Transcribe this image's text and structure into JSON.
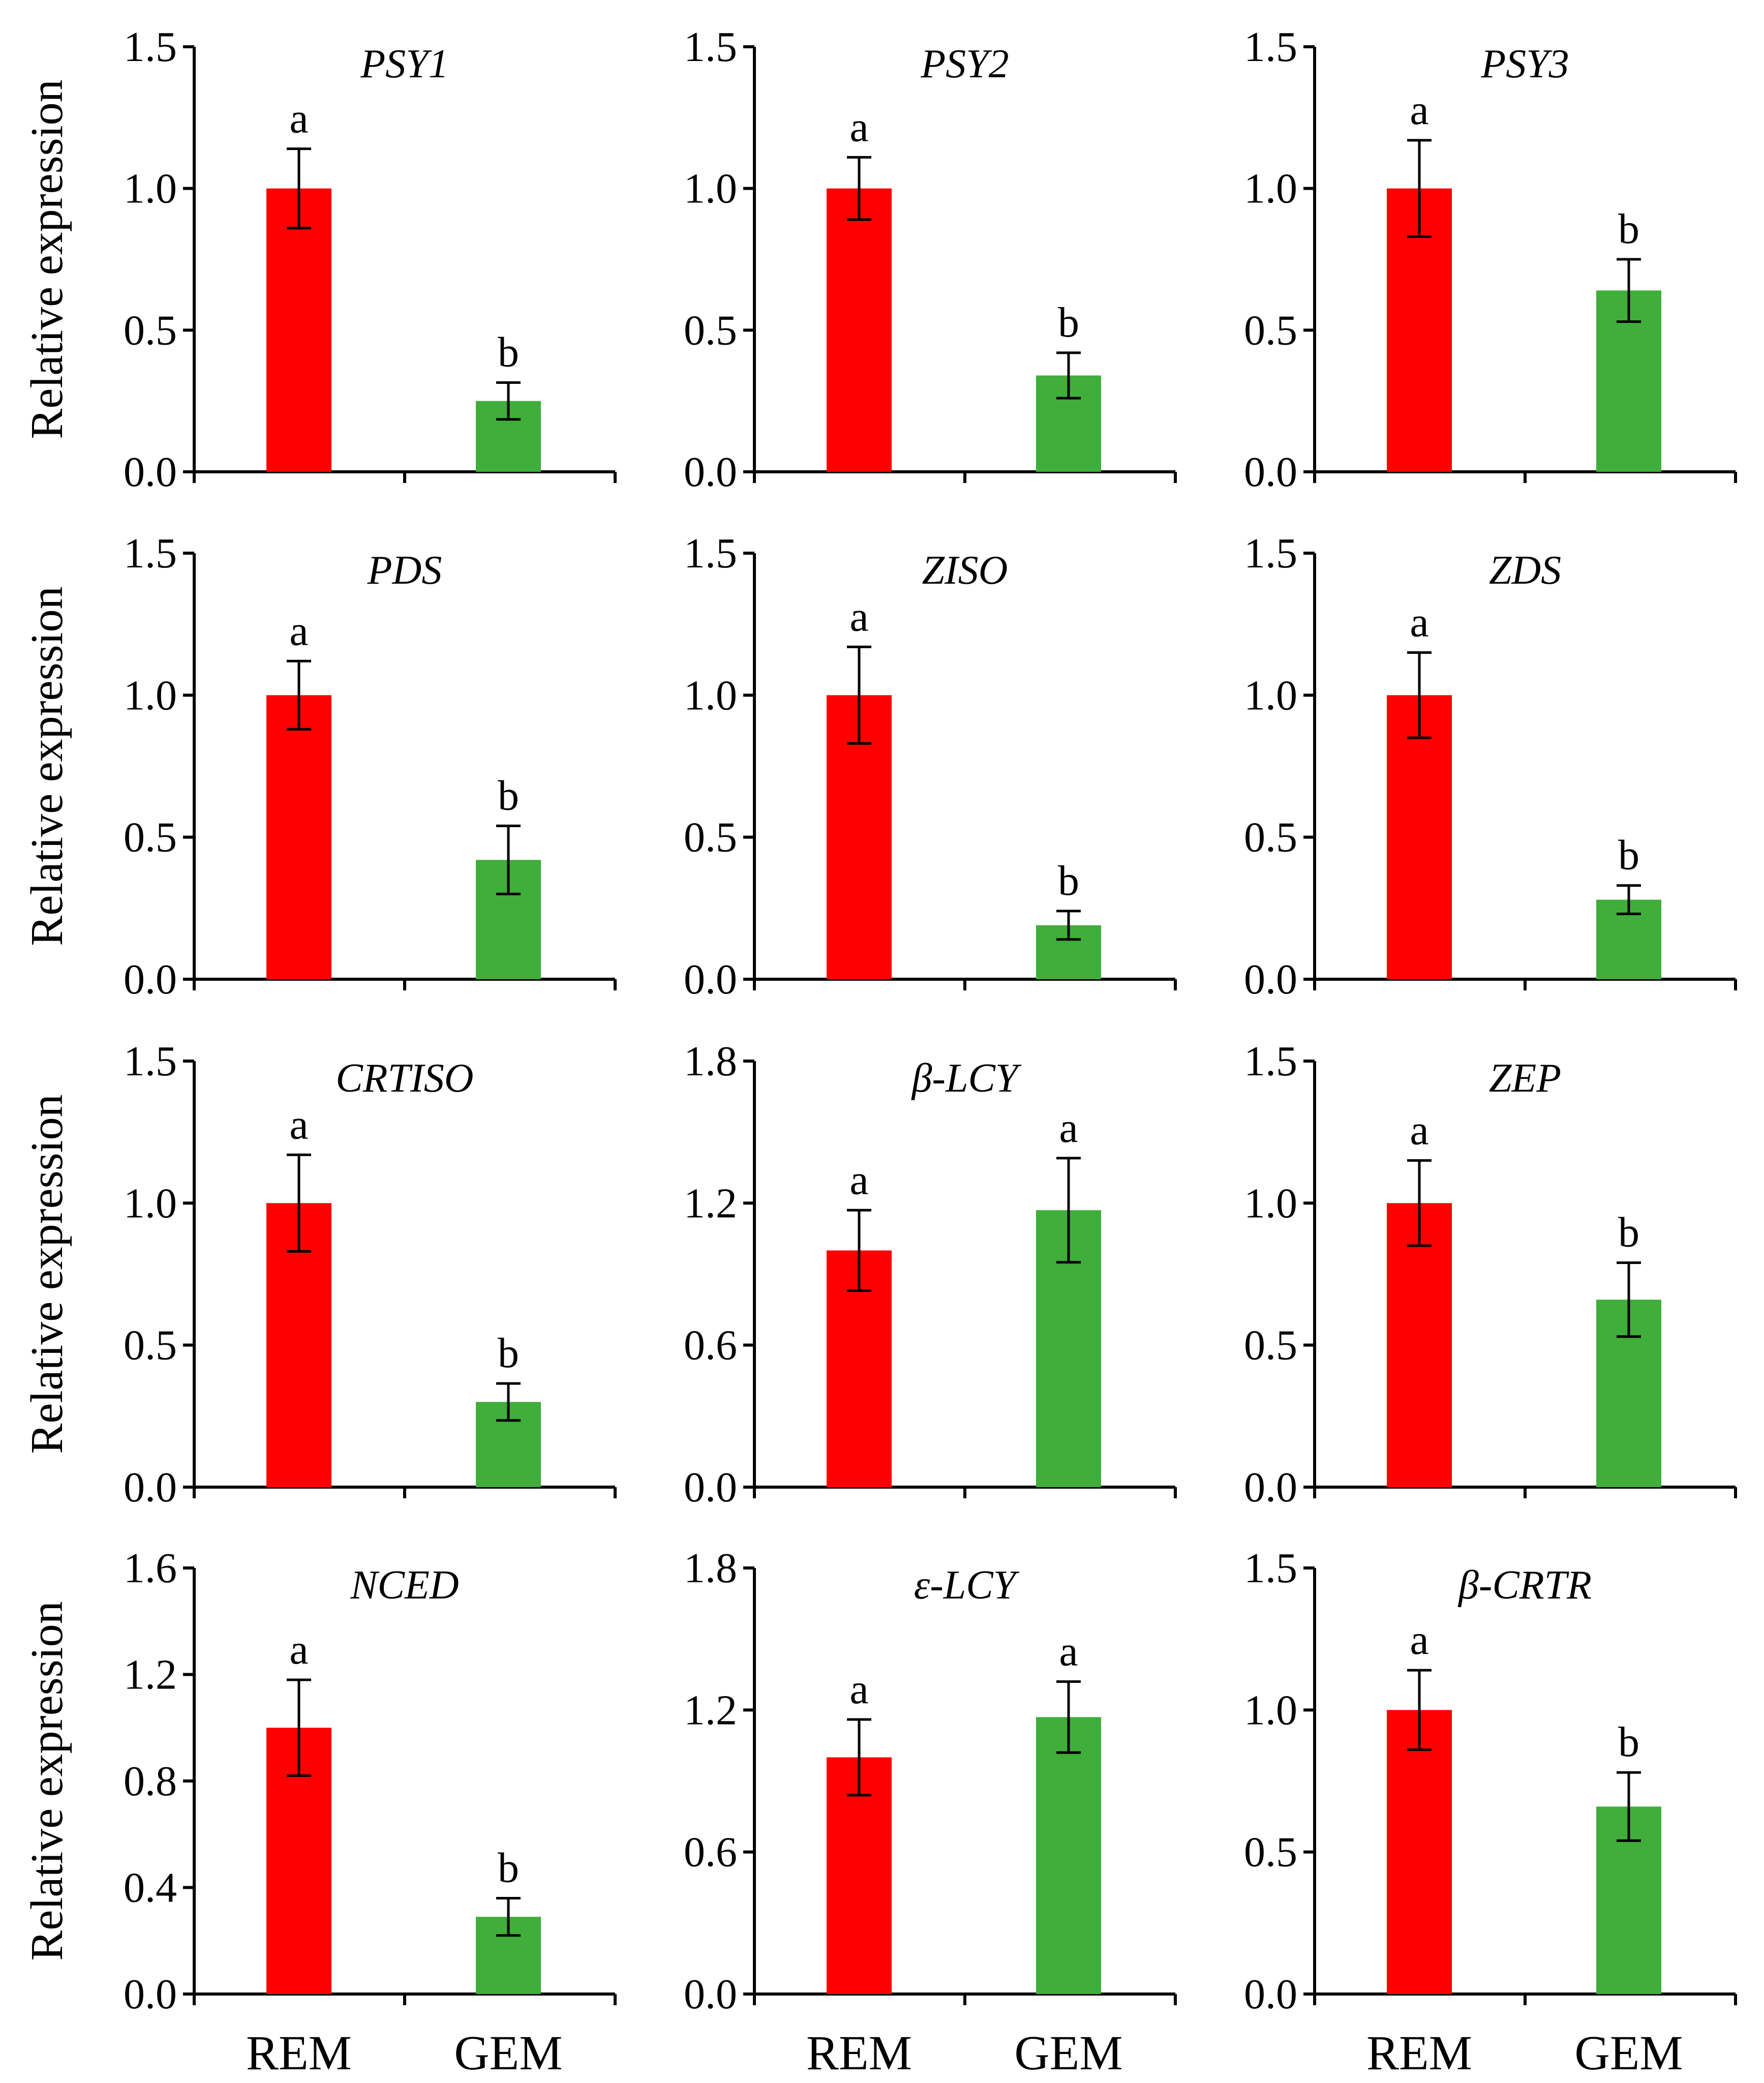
{
  "figure": {
    "y_axis_label": "Relative expression",
    "categories": [
      "REM",
      "GEM"
    ],
    "colors": {
      "REM": "#ff0000",
      "GEM": "#3fae3a"
    }
  },
  "chart_data": [
    {
      "type": "bar",
      "title": "PSY1",
      "categories": [
        "REM",
        "GEM"
      ],
      "values": [
        1.0,
        0.25
      ],
      "errors": [
        0.14,
        0.065
      ],
      "significance": [
        "a",
        "b"
      ],
      "ylim": [
        0,
        1.5
      ],
      "yticks": [
        "0.0",
        "0.5",
        "1.0",
        "1.5"
      ],
      "ylabel": "Relative expression",
      "xlabel": ""
    },
    {
      "type": "bar",
      "title": "PSY2",
      "categories": [
        "REM",
        "GEM"
      ],
      "values": [
        1.0,
        0.34
      ],
      "errors": [
        0.11,
        0.08
      ],
      "significance": [
        "a",
        "b"
      ],
      "ylim": [
        0,
        1.5
      ],
      "yticks": [
        "0.0",
        "0.5",
        "1.0",
        "1.5"
      ],
      "ylabel": "",
      "xlabel": ""
    },
    {
      "type": "bar",
      "title": "PSY3",
      "categories": [
        "REM",
        "GEM"
      ],
      "values": [
        1.0,
        0.64
      ],
      "errors": [
        0.17,
        0.11
      ],
      "significance": [
        "a",
        "b"
      ],
      "ylim": [
        0,
        1.5
      ],
      "yticks": [
        "0.0",
        "0.5",
        "1.0",
        "1.5"
      ],
      "ylabel": "",
      "xlabel": ""
    },
    {
      "type": "bar",
      "title": "PDS",
      "categories": [
        "REM",
        "GEM"
      ],
      "values": [
        1.0,
        0.42
      ],
      "errors": [
        0.12,
        0.12
      ],
      "significance": [
        "a",
        "b"
      ],
      "ylim": [
        0,
        1.5
      ],
      "yticks": [
        "0.0",
        "0.5",
        "1.0",
        "1.5"
      ],
      "ylabel": "Relative expression",
      "xlabel": ""
    },
    {
      "type": "bar",
      "title": "ZISO",
      "categories": [
        "REM",
        "GEM"
      ],
      "values": [
        1.0,
        0.19
      ],
      "errors": [
        0.17,
        0.05
      ],
      "significance": [
        "a",
        "b"
      ],
      "ylim": [
        0,
        1.5
      ],
      "yticks": [
        "0.0",
        "0.5",
        "1.0",
        "1.5"
      ],
      "ylabel": "",
      "xlabel": ""
    },
    {
      "type": "bar",
      "title": "ZDS",
      "categories": [
        "REM",
        "GEM"
      ],
      "values": [
        1.0,
        0.28
      ],
      "errors": [
        0.15,
        0.05
      ],
      "significance": [
        "a",
        "b"
      ],
      "ylim": [
        0,
        1.5
      ],
      "yticks": [
        "0.0",
        "0.5",
        "1.0",
        "1.5"
      ],
      "ylabel": "",
      "xlabel": ""
    },
    {
      "type": "bar",
      "title": "CRTISO",
      "categories": [
        "REM",
        "GEM"
      ],
      "values": [
        1.0,
        0.3
      ],
      "errors": [
        0.17,
        0.065
      ],
      "significance": [
        "a",
        "b"
      ],
      "ylim": [
        0,
        1.5
      ],
      "yticks": [
        "0.0",
        "0.5",
        "1.0",
        "1.5"
      ],
      "ylabel": "Relative expression",
      "xlabel": ""
    },
    {
      "type": "bar",
      "title": "β-LCY",
      "categories": [
        "REM",
        "GEM"
      ],
      "values": [
        1.0,
        1.17
      ],
      "errors": [
        0.17,
        0.22
      ],
      "significance": [
        "a",
        "a"
      ],
      "ylim": [
        0,
        1.8
      ],
      "yticks": [
        "0.0",
        "0.6",
        "1.2",
        "1.8"
      ],
      "ylabel": "",
      "xlabel": ""
    },
    {
      "type": "bar",
      "title": "ZEP",
      "categories": [
        "REM",
        "GEM"
      ],
      "values": [
        1.0,
        0.66
      ],
      "errors": [
        0.15,
        0.13
      ],
      "significance": [
        "a",
        "b"
      ],
      "ylim": [
        0,
        1.5
      ],
      "yticks": [
        "0.0",
        "0.5",
        "1.0",
        "1.5"
      ],
      "ylabel": "",
      "xlabel": ""
    },
    {
      "type": "bar",
      "title": "NCED",
      "categories": [
        "REM",
        "GEM"
      ],
      "values": [
        1.0,
        0.29
      ],
      "errors": [
        0.18,
        0.07
      ],
      "significance": [
        "a",
        "b"
      ],
      "ylim": [
        0,
        1.6
      ],
      "yticks": [
        "0.0",
        "0.4",
        "0.8",
        "1.2",
        "1.6"
      ],
      "ylabel": "Relative expression",
      "xlabel": ""
    },
    {
      "type": "bar",
      "title": "ε-LCY",
      "categories": [
        "REM",
        "GEM"
      ],
      "values": [
        1.0,
        1.17
      ],
      "errors": [
        0.16,
        0.15
      ],
      "significance": [
        "a",
        "a"
      ],
      "ylim": [
        0,
        1.8
      ],
      "yticks": [
        "0.0",
        "0.6",
        "1.2",
        "1.8"
      ],
      "ylabel": "",
      "xlabel": ""
    },
    {
      "type": "bar",
      "title": "β-CRTR",
      "categories": [
        "REM",
        "GEM"
      ],
      "values": [
        1.0,
        0.66
      ],
      "errors": [
        0.14,
        0.12
      ],
      "significance": [
        "a",
        "b"
      ],
      "ylim": [
        0,
        1.5
      ],
      "yticks": [
        "0.0",
        "0.5",
        "1.0",
        "1.5"
      ],
      "ylabel": "",
      "xlabel": ""
    }
  ]
}
